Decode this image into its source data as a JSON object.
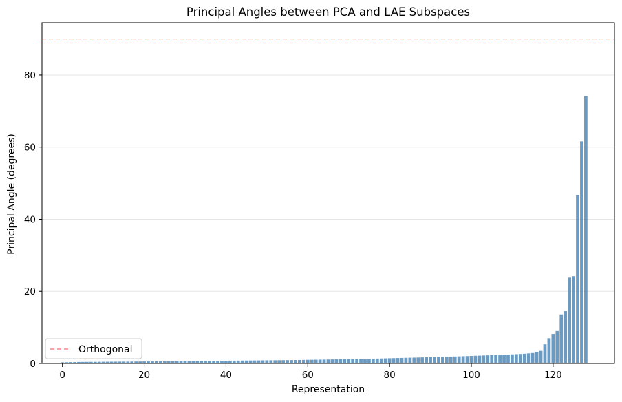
{
  "chart_data": {
    "type": "bar",
    "title": "Principal Angles between PCA and LAE Subspaces",
    "xlabel": "Representation",
    "ylabel": "Principal Angle (degrees)",
    "xlim": [
      -5,
      135
    ],
    "ylim": [
      0,
      94.5
    ],
    "xticks": [
      0,
      20,
      40,
      60,
      80,
      100,
      120
    ],
    "yticks": [
      0,
      20,
      40,
      60,
      80
    ],
    "grid": "y",
    "bar_color": "#4682b4",
    "reference_line": {
      "label": "Orthogonal",
      "y": 90,
      "color": "#ff6b6b",
      "style": "dashed"
    },
    "legend": {
      "position": "lower-left",
      "entries": [
        "Orthogonal"
      ]
    },
    "x": [
      0,
      1,
      2,
      3,
      4,
      5,
      6,
      7,
      8,
      9,
      10,
      11,
      12,
      13,
      14,
      15,
      16,
      17,
      18,
      19,
      20,
      21,
      22,
      23,
      24,
      25,
      26,
      27,
      28,
      29,
      30,
      31,
      32,
      33,
      34,
      35,
      36,
      37,
      38,
      39,
      40,
      41,
      42,
      43,
      44,
      45,
      46,
      47,
      48,
      49,
      50,
      51,
      52,
      53,
      54,
      55,
      56,
      57,
      58,
      59,
      60,
      61,
      62,
      63,
      64,
      65,
      66,
      67,
      68,
      69,
      70,
      71,
      72,
      73,
      74,
      75,
      76,
      77,
      78,
      79,
      80,
      81,
      82,
      83,
      84,
      85,
      86,
      87,
      88,
      89,
      90,
      91,
      92,
      93,
      94,
      95,
      96,
      97,
      98,
      99,
      100,
      101,
      102,
      103,
      104,
      105,
      106,
      107,
      108,
      109,
      110,
      111,
      112,
      113,
      114,
      115,
      116,
      117,
      118,
      119,
      120,
      121,
      122,
      123,
      124,
      125,
      126,
      127,
      128
    ],
    "values": [
      0.3,
      0.33,
      0.36,
      0.38,
      0.4,
      0.41,
      0.42,
      0.43,
      0.44,
      0.45,
      0.46,
      0.47,
      0.48,
      0.49,
      0.5,
      0.5,
      0.51,
      0.52,
      0.53,
      0.54,
      0.55,
      0.56,
      0.57,
      0.58,
      0.59,
      0.6,
      0.61,
      0.62,
      0.63,
      0.64,
      0.65,
      0.66,
      0.67,
      0.68,
      0.69,
      0.7,
      0.71,
      0.73,
      0.74,
      0.75,
      0.76,
      0.77,
      0.78,
      0.79,
      0.8,
      0.81,
      0.82,
      0.83,
      0.84,
      0.86,
      0.87,
      0.88,
      0.89,
      0.9,
      0.91,
      0.92,
      0.94,
      0.95,
      0.96,
      0.98,
      1.0,
      1.02,
      1.04,
      1.06,
      1.08,
      1.1,
      1.12,
      1.14,
      1.16,
      1.18,
      1.2,
      1.22,
      1.24,
      1.26,
      1.28,
      1.3,
      1.33,
      1.36,
      1.39,
      1.42,
      1.45,
      1.48,
      1.51,
      1.54,
      1.57,
      1.6,
      1.63,
      1.66,
      1.69,
      1.72,
      1.75,
      1.78,
      1.81,
      1.84,
      1.87,
      1.9,
      1.94,
      1.98,
      2.02,
      2.06,
      2.1,
      2.14,
      2.18,
      2.22,
      2.26,
      2.3,
      2.34,
      2.38,
      2.43,
      2.48,
      2.53,
      2.58,
      2.63,
      2.7,
      2.8,
      2.9,
      3.2,
      3.5,
      5.3,
      7.0,
      8.2,
      9.0,
      13.6,
      14.5,
      23.8,
      24.2,
      46.7,
      61.6,
      74.2
    ]
  }
}
